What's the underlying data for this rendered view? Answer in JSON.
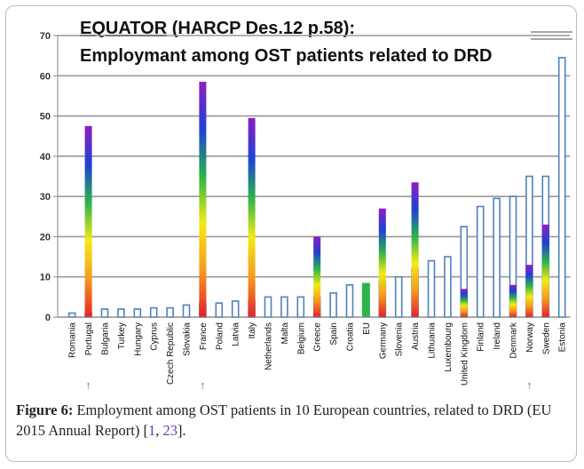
{
  "chart_data": {
    "type": "bar",
    "title": [
      "EQUATOR",
      " (HARCP Des.12 p.58):",
      "Employmant among OST patients related to DRD"
    ],
    "categories": [
      "Romania",
      "Portugal",
      "Bulgaria",
      "Turkey",
      "Hungary",
      "Cyprus",
      "Czech Republic",
      "Slovakia",
      "France",
      "Poland",
      "Latvia",
      "Italy",
      "Netherlands",
      "Malta",
      "Belgium",
      "Greece",
      "Spain",
      "Croatia",
      "EU",
      "Germany",
      "Slovenia",
      "Austria",
      "Lithuania",
      "Luxembourg",
      "United Kingdom",
      "Finland",
      "Ireland",
      "Denmark",
      "Norway",
      "Sweden",
      "Estonia"
    ],
    "series": [
      {
        "color": "#4f81bd",
        "style": "outline",
        "values": [
          1,
          1,
          2,
          2,
          2,
          2.3,
          2.3,
          3,
          3.5,
          3.5,
          4,
          4,
          5,
          5,
          5,
          5,
          6,
          8,
          null,
          9,
          10,
          12,
          14,
          15,
          22.5,
          27.5,
          29.5,
          30,
          35,
          35,
          64.5
        ]
      },
      {
        "color": "#2db34a",
        "style": "filled",
        "values": [
          null,
          null,
          null,
          null,
          null,
          null,
          null,
          null,
          null,
          null,
          null,
          null,
          null,
          null,
          null,
          null,
          null,
          null,
          8.5,
          null,
          null,
          null,
          null,
          null,
          null,
          null,
          null,
          null,
          null,
          null,
          null
        ]
      },
      {
        "color": [
          "#e4202a",
          "#f59a1d",
          "#f4ea16",
          "#2bb34a",
          "#1f3fd8",
          "#8d1fbf"
        ],
        "style": "gradient",
        "values": [
          null,
          47.5,
          null,
          null,
          null,
          null,
          null,
          null,
          58.5,
          null,
          null,
          49.5,
          null,
          null,
          null,
          20,
          null,
          null,
          null,
          27,
          null,
          33.5,
          null,
          null,
          7,
          null,
          null,
          8,
          13,
          23,
          null
        ]
      }
    ],
    "ylim": [
      0,
      70
    ],
    "yticks": [
      0,
      10,
      20,
      30,
      40,
      50,
      60,
      70
    ],
    "grid": true,
    "annotations": [
      {
        "text": "↑",
        "at": "Portugal"
      },
      {
        "text": "↑",
        "at": "France"
      },
      {
        "text": "↑",
        "at": "Norway"
      }
    ]
  },
  "caption": {
    "label": "Figure 6:",
    "text": " Employment among OST patients in 10 European countries, related to DRD (EU 2015 Annual Report) [",
    "ref1": "1",
    "sep": ", ",
    "ref2": "23",
    "end": "]."
  }
}
